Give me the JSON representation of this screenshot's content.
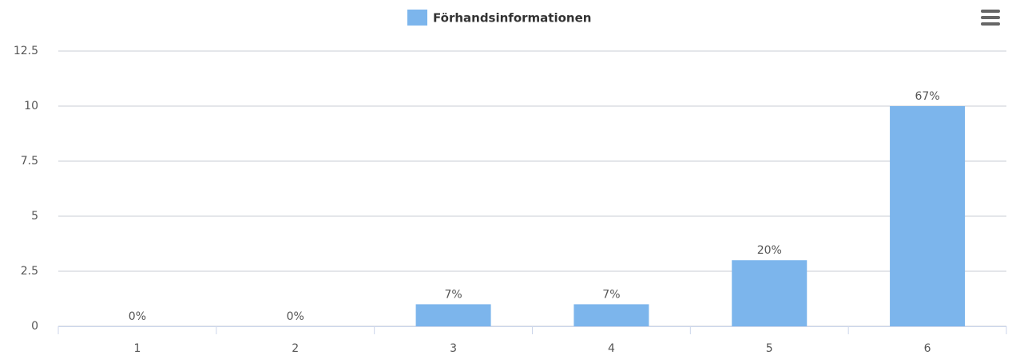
{
  "chart_data": {
    "type": "bar",
    "categories": [
      "1",
      "2",
      "3",
      "4",
      "5",
      "6"
    ],
    "series": [
      {
        "name": "Förhandsinformationen",
        "color": "#7cb5ec",
        "values": [
          0,
          0,
          1,
          1,
          3,
          10
        ],
        "value_labels": [
          "0%",
          "0%",
          "7%",
          "7%",
          "20%",
          "67%"
        ]
      }
    ],
    "ylim": [
      0,
      12.5
    ],
    "yticks": [
      0,
      2.5,
      5,
      7.5,
      10,
      12.5
    ],
    "grid": true,
    "legend": "top"
  }
}
